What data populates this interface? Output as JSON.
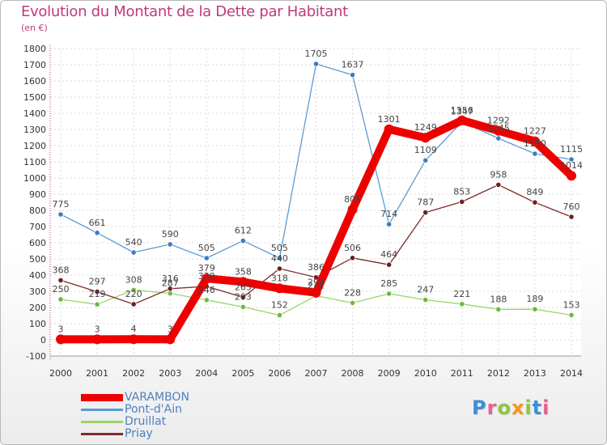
{
  "header": {
    "title": "Evolution du Montant de la Dette par Habitant",
    "subtitle": "(en €)"
  },
  "logo": {
    "text": "Proxiti",
    "colors": [
      "#3c8fd6",
      "#e85f8f",
      "#8cc63f",
      "#f7931e",
      "#8cc63f",
      "#3c8fd6",
      "#e85f8f"
    ]
  },
  "chart_data": {
    "type": "line",
    "title": "Evolution du Montant de la Dette par Habitant",
    "subtitle": "(en €)",
    "x": [
      "2000",
      "2001",
      "2002",
      "2003",
      "2004",
      "2005",
      "2006",
      "2007",
      "2008",
      "2009",
      "2010",
      "2011",
      "2012",
      "2013",
      "2014"
    ],
    "ylim": [
      -100,
      1800
    ],
    "yticks": [
      -100,
      0,
      100,
      200,
      300,
      400,
      500,
      600,
      700,
      800,
      900,
      1000,
      1100,
      1200,
      1300,
      1400,
      1500,
      1600,
      1700,
      1800
    ],
    "grid": true,
    "legend_position": "bottom-left",
    "series": [
      {
        "name": "Pont-d'Ain",
        "color": "#5b9bd5",
        "marker": "#3a7dc0",
        "values": [
          775,
          661,
          540,
          590,
          505,
          612,
          505,
          1705,
          1637,
          714,
          1109,
          1347,
          1245,
          1150,
          1115
        ]
      },
      {
        "name": "Druillat",
        "color": "#9bd46a",
        "marker": "#6cbb3c",
        "values": [
          250,
          219,
          308,
          287,
          246,
          203,
          152,
          272,
          228,
          285,
          247,
          221,
          188,
          189,
          153
        ]
      },
      {
        "name": "Priay",
        "color": "#7f2a2a",
        "marker": "#6b1f1f",
        "values": [
          368,
          297,
          220,
          316,
          330,
          263,
          440,
          386,
          506,
          464,
          787,
          853,
          958,
          849,
          760
        ]
      },
      {
        "name": "VARAMBON",
        "color": "#ee0000",
        "marker": "#ee0000",
        "values": [
          3,
          3,
          4,
          3,
          379,
          358,
          318,
          292,
          805,
          1301,
          1249,
          1356,
          1292,
          1227,
          1014
        ]
      }
    ]
  }
}
